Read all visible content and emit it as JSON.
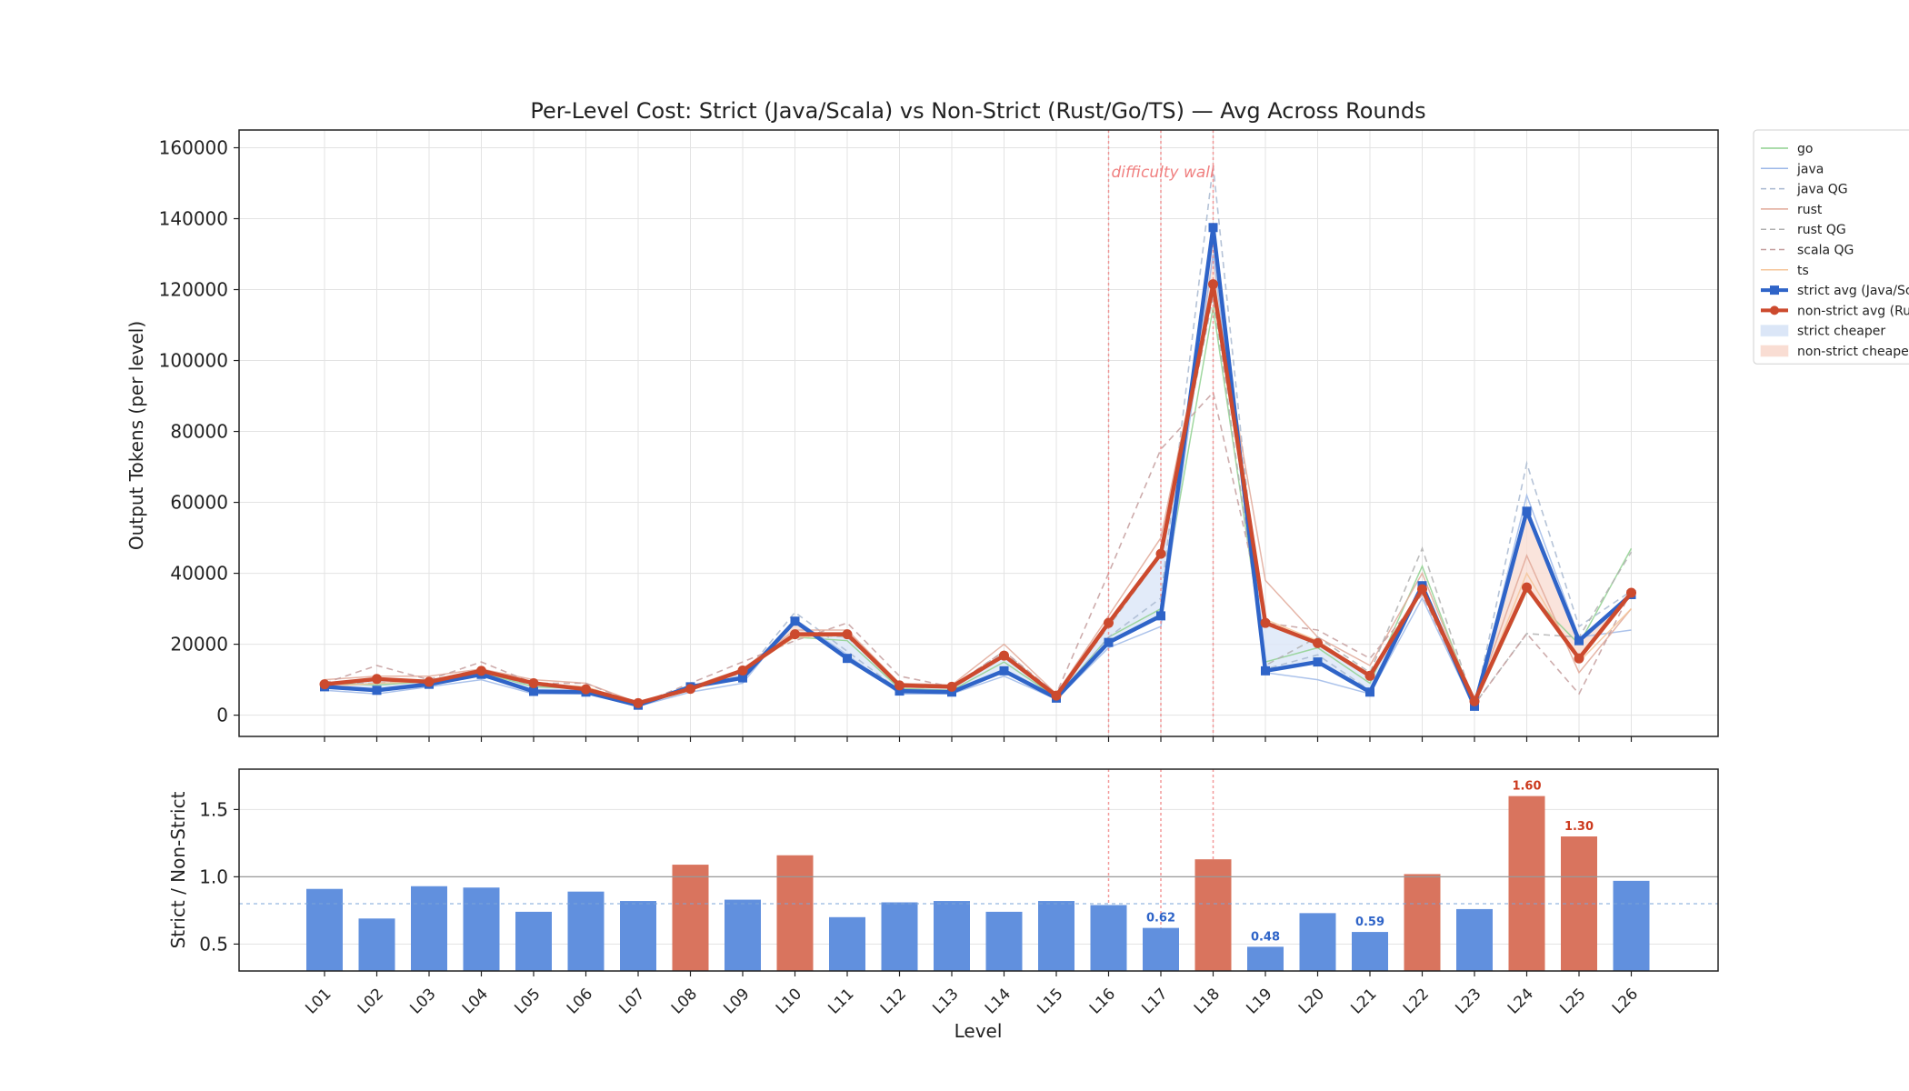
{
  "chart_data": [
    {
      "type": "line",
      "title": "Per-Level Cost: Strict (Java/Scala) vs Non-Strict (Rust/Go/TS) — Avg Across Rounds",
      "xlabel": "",
      "ylabel": "Output Tokens (per level)",
      "ylim": [
        -6000,
        165000
      ],
      "yticks": [
        0,
        20000,
        40000,
        60000,
        80000,
        100000,
        120000,
        140000,
        160000
      ],
      "grid": true,
      "categories": [
        "L01",
        "L02",
        "L03",
        "L04",
        "L05",
        "L06",
        "L07",
        "L08",
        "L09",
        "L10",
        "L11",
        "L12",
        "L13",
        "L14",
        "L15",
        "L16",
        "L17",
        "L18",
        "L19",
        "L20",
        "L21",
        "L22",
        "L23",
        "L24",
        "L25",
        "L26"
      ],
      "annotation": {
        "text": "difficulty wall",
        "levels": [
          "L16",
          "L17",
          "L18"
        ]
      },
      "legend_position": "upper right, outside plot",
      "series": [
        {
          "name": "go",
          "style": "thin",
          "color": "#8fd18f",
          "values": [
            9000,
            8500,
            9500,
            12000,
            8000,
            7500,
            3000,
            7000,
            13000,
            22000,
            21000,
            7500,
            7000,
            15000,
            5000,
            22000,
            30000,
            115000,
            15000,
            19000,
            9000,
            42000,
            3000,
            35000,
            20000,
            47000
          ]
        },
        {
          "name": "java",
          "style": "thin",
          "color": "#9db8e8",
          "values": [
            7000,
            6000,
            8000,
            10000,
            6000,
            6000,
            2500,
            6500,
            9000,
            27000,
            17000,
            6000,
            6000,
            11000,
            4500,
            19000,
            25000,
            130000,
            12000,
            10000,
            6000,
            33000,
            2000,
            62000,
            22000,
            24000
          ]
        },
        {
          "name": "java QG",
          "style": "dashed",
          "color": "#a8b8d0",
          "values": [
            8000,
            7000,
            9000,
            11000,
            7000,
            6500,
            2800,
            8000,
            11000,
            29000,
            18000,
            7000,
            6500,
            12000,
            5000,
            22000,
            33000,
            155000,
            13000,
            17000,
            7000,
            36000,
            2500,
            71000,
            25000,
            35000
          ]
        },
        {
          "name": "rust",
          "style": "thin",
          "color": "#e0a898",
          "values": [
            10000,
            11000,
            11000,
            13000,
            10000,
            9000,
            3500,
            8000,
            13000,
            24000,
            24000,
            9000,
            8500,
            20000,
            6000,
            28000,
            50000,
            122000,
            38000,
            22000,
            14000,
            40000,
            3500,
            45000,
            12000,
            30000
          ]
        },
        {
          "name": "rust QG",
          "style": "dashed",
          "color": "#b0b0b0",
          "values": [
            9000,
            9000,
            10000,
            12000,
            8500,
            8000,
            3200,
            7500,
            12000,
            23000,
            22000,
            8500,
            8000,
            18000,
            5500,
            25000,
            45000,
            118000,
            14000,
            22000,
            12000,
            47000,
            3000,
            23000,
            22000,
            46000
          ]
        },
        {
          "name": "scala QG",
          "style": "dashed",
          "color": "#c49e9e",
          "values": [
            9000,
            14000,
            10000,
            15000,
            9000,
            9000,
            3000,
            9000,
            15000,
            21000,
            26000,
            11000,
            8000,
            18000,
            6000,
            40000,
            75000,
            91000,
            26000,
            24000,
            16000,
            34000,
            3000,
            23000,
            6000,
            35000
          ]
        },
        {
          "name": "ts",
          "style": "thin",
          "color": "#f5c69a",
          "values": [
            8000,
            9000,
            9500,
            12500,
            9000,
            8000,
            3300,
            7500,
            12500,
            22000,
            22500,
            8000,
            8000,
            17000,
            5500,
            26000,
            45000,
            120000,
            27000,
            21000,
            11000,
            35000,
            3000,
            40000,
            15000,
            30000
          ]
        },
        {
          "name": "strict avg (Java/Scala)",
          "style": "bold",
          "color": "#2f64c8",
          "marker": "square",
          "values": [
            8000,
            7000,
            8700,
            11500,
            6700,
            6500,
            2800,
            8000,
            10500,
            26500,
            16000,
            6800,
            6500,
            12500,
            4800,
            20500,
            28000,
            137500,
            12500,
            15000,
            6500,
            36500,
            2500,
            57500,
            21000,
            34000
          ]
        },
        {
          "name": "non-strict avg (Rust/Go/TS)",
          "style": "bold",
          "color": "#cc4a2e",
          "marker": "circle",
          "values": [
            8700,
            10200,
            9400,
            12500,
            9000,
            7300,
            3400,
            7400,
            12600,
            22800,
            22800,
            8400,
            8000,
            16800,
            5500,
            26000,
            45500,
            121500,
            26000,
            20300,
            11100,
            35500,
            3900,
            36000,
            16000,
            34500
          ]
        },
        {
          "name": "strict cheaper",
          "style": "fill",
          "color": "#dbe6f7"
        },
        {
          "name": "non-strict cheaper",
          "style": "fill",
          "color": "#f9ddd3"
        }
      ]
    },
    {
      "type": "bar",
      "title": "",
      "xlabel": "Level",
      "ylabel": "Strict / Non-Strict",
      "ylim": [
        0.3,
        1.8
      ],
      "yticks": [
        0.5,
        1.0,
        1.5
      ],
      "reference_lines": [
        1.0,
        0.8
      ],
      "categories": [
        "L01",
        "L02",
        "L03",
        "L04",
        "L05",
        "L06",
        "L07",
        "L08",
        "L09",
        "L10",
        "L11",
        "L12",
        "L13",
        "L14",
        "L15",
        "L16",
        "L17",
        "L18",
        "L19",
        "L20",
        "L21",
        "L22",
        "L23",
        "L24",
        "L25",
        "L26"
      ],
      "values": [
        0.91,
        0.69,
        0.93,
        0.92,
        0.74,
        0.89,
        0.82,
        1.09,
        0.83,
        1.16,
        0.7,
        0.81,
        0.82,
        0.74,
        0.82,
        0.79,
        0.62,
        1.13,
        0.48,
        0.73,
        0.59,
        1.02,
        0.76,
        1.6,
        1.3,
        0.97
      ],
      "data_labels": [
        {
          "level": "L17",
          "text": "0.62"
        },
        {
          "level": "L19",
          "text": "0.48"
        },
        {
          "level": "L21",
          "text": "0.59"
        },
        {
          "level": "L24",
          "text": "1.60"
        },
        {
          "level": "L25",
          "text": "1.30"
        }
      ],
      "colors": {
        "below": "#6190de",
        "above": "#d9745e",
        "label_below": "#2f64c8",
        "label_above": "#cc3a1e"
      }
    }
  ]
}
